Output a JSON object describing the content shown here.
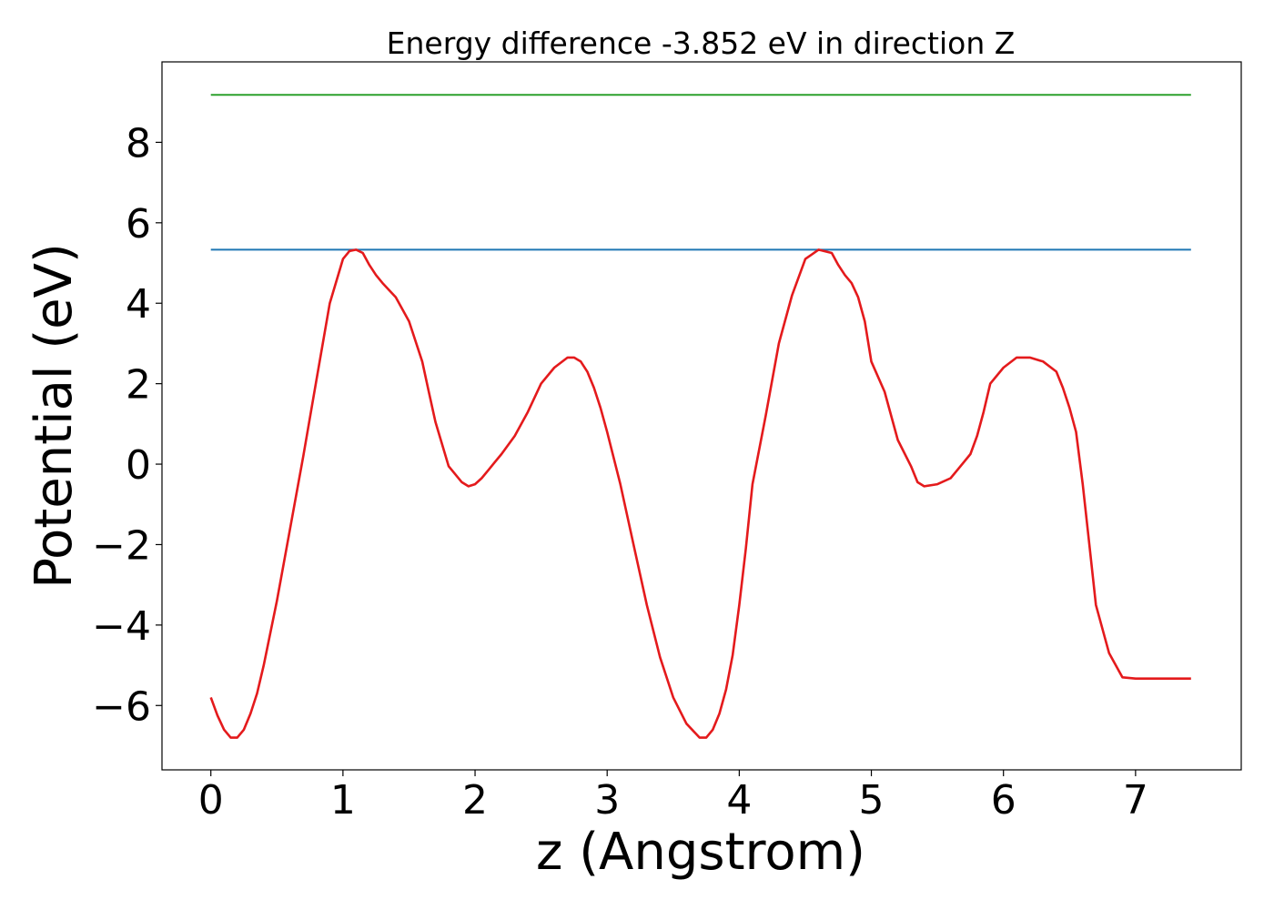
{
  "chart_data": {
    "type": "line",
    "title": "Energy difference -3.852 eV in direction Z",
    "xlabel": "z (Angstrom)",
    "ylabel": "Potential (eV)",
    "xlim": [
      -0.37,
      7.8
    ],
    "ylim": [
      -7.6,
      10.0
    ],
    "x_ticks": [
      0,
      1,
      2,
      3,
      4,
      5,
      6,
      7
    ],
    "x_tick_labels": [
      "0",
      "1",
      "2",
      "3",
      "4",
      "5",
      "6",
      "7"
    ],
    "y_ticks": [
      -6,
      -4,
      -2,
      0,
      2,
      4,
      6,
      8
    ],
    "y_tick_labels": [
      "−6",
      "−4",
      "−2",
      "0",
      "2",
      "4",
      "6",
      "8"
    ],
    "grid": false,
    "series": [
      {
        "color": "#1f77b4",
        "x": [
          0,
          7.42
        ],
        "y": [
          5.33,
          5.33
        ]
      },
      {
        "color": "#2ca02c",
        "x": [
          0,
          7.42
        ],
        "y": [
          9.18,
          9.18
        ]
      },
      {
        "color": "#e41a1c",
        "x": [
          0.0,
          0.05,
          0.1,
          0.15,
          0.2,
          0.25,
          0.3,
          0.35,
          0.4,
          0.5,
          0.6,
          0.7,
          0.8,
          0.9,
          1.0,
          1.05,
          1.1,
          1.15,
          1.2,
          1.25,
          1.3,
          1.4,
          1.5,
          1.6,
          1.65,
          1.7,
          1.8,
          1.9,
          1.95,
          2.0,
          2.05,
          2.1,
          2.15,
          2.2,
          2.3,
          2.4,
          2.5,
          2.6,
          2.7,
          2.75,
          2.8,
          2.85,
          2.9,
          2.95,
          3.0,
          3.1,
          3.2,
          3.3,
          3.4,
          3.5,
          3.6,
          3.7,
          3.75,
          3.8,
          3.85,
          3.9,
          3.95,
          4.0,
          4.05,
          4.1,
          4.2,
          4.3,
          4.4,
          4.5,
          4.6,
          4.7,
          4.75,
          4.8,
          4.85,
          4.9,
          4.95,
          5.0,
          5.1,
          5.2,
          5.3,
          5.35,
          5.4,
          5.5,
          5.6,
          5.65,
          5.7,
          5.75,
          5.8,
          5.85,
          5.9,
          6.0,
          6.1,
          6.2,
          6.3,
          6.4,
          6.45,
          6.5,
          6.55,
          6.6,
          6.65,
          6.7,
          6.8,
          6.9,
          7.0,
          7.1,
          7.2,
          7.3,
          7.42
        ],
        "y": [
          -5.8,
          -6.25,
          -6.6,
          -6.8,
          -6.8,
          -6.6,
          -6.2,
          -5.7,
          -5.0,
          -3.4,
          -1.6,
          0.2,
          2.1,
          4.0,
          5.1,
          5.3,
          5.33,
          5.25,
          4.95,
          4.7,
          4.5,
          4.15,
          3.55,
          2.55,
          1.8,
          1.05,
          -0.05,
          -0.45,
          -0.55,
          -0.5,
          -0.35,
          -0.15,
          0.05,
          0.25,
          0.7,
          1.3,
          2.0,
          2.4,
          2.65,
          2.65,
          2.55,
          2.3,
          1.9,
          1.4,
          0.8,
          -0.5,
          -2.0,
          -3.5,
          -4.8,
          -5.8,
          -6.45,
          -6.8,
          -6.8,
          -6.6,
          -6.2,
          -5.6,
          -4.75,
          -3.5,
          -2.1,
          -0.5,
          1.2,
          3.0,
          4.2,
          5.1,
          5.33,
          5.25,
          4.95,
          4.7,
          4.5,
          4.15,
          3.55,
          2.55,
          1.8,
          0.6,
          -0.05,
          -0.45,
          -0.55,
          -0.5,
          -0.35,
          -0.15,
          0.05,
          0.25,
          0.7,
          1.3,
          2.0,
          2.4,
          2.65,
          2.65,
          2.55,
          2.3,
          1.9,
          1.4,
          0.8,
          -0.5,
          -2.0,
          -3.5,
          -4.7,
          -5.3,
          -5.33,
          -5.33,
          -5.33,
          -5.33,
          -5.33
        ]
      }
    ]
  }
}
